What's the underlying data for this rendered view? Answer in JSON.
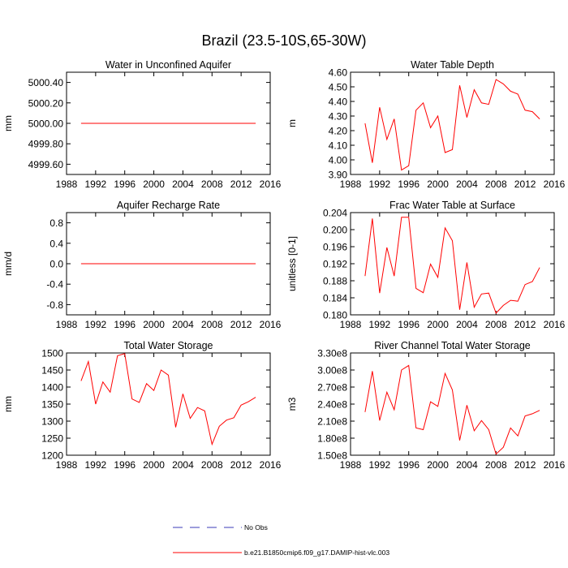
{
  "title": "Brazil (23.5-10S,65-30W)",
  "legend": {
    "entries": [
      {
        "label": "No Obs",
        "color": "#3b3bb8",
        "dash": true
      },
      {
        "label": "b.e21.B1850cmip6.f09_g17.DAMIP-hist-vlc.003",
        "color": "#ff0000",
        "dash": false
      }
    ]
  },
  "chart_data": [
    {
      "type": "line",
      "title": "Water in Unconfined Aquifer",
      "ylabel": "mm",
      "xlim": [
        1988,
        2016
      ],
      "xticks": [
        1988,
        1992,
        1996,
        2000,
        2004,
        2008,
        2012,
        2016
      ],
      "xtick_labels": [
        "1988",
        "1992",
        "1996",
        "2000",
        "2004",
        "2008",
        "2012",
        "2016"
      ],
      "ylim": [
        4999.5,
        5000.5
      ],
      "yticks": [
        4999.6,
        4999.8,
        5000.0,
        5000.2,
        5000.4
      ],
      "ytick_labels": [
        "4999.60",
        "4999.80",
        "5000.00",
        "5000.20",
        "5000.40"
      ],
      "series": [
        {
          "color": "#ff0000",
          "x": [
            1990,
            1991,
            1992,
            1993,
            1994,
            1995,
            1996,
            1997,
            1998,
            1999,
            2000,
            2001,
            2002,
            2003,
            2004,
            2005,
            2006,
            2007,
            2008,
            2009,
            2010,
            2011,
            2012,
            2013,
            2014
          ],
          "y": [
            5000,
            5000,
            5000,
            5000,
            5000,
            5000,
            5000,
            5000,
            5000,
            5000,
            5000,
            5000,
            5000,
            5000,
            5000,
            5000,
            5000,
            5000,
            5000,
            5000,
            5000,
            5000,
            5000,
            5000,
            5000
          ]
        }
      ]
    },
    {
      "type": "line",
      "title": "Water Table Depth",
      "ylabel": "m",
      "xlim": [
        1988,
        2016
      ],
      "xticks": [
        1988,
        1992,
        1996,
        2000,
        2004,
        2008,
        2012,
        2016
      ],
      "xtick_labels": [
        "1988",
        "1992",
        "1996",
        "2000",
        "2004",
        "2008",
        "2012",
        "2016"
      ],
      "ylim": [
        3.9,
        4.6
      ],
      "yticks": [
        3.9,
        4.0,
        4.1,
        4.2,
        4.3,
        4.4,
        4.5,
        4.6
      ],
      "ytick_labels": [
        "3.90",
        "4.00",
        "4.10",
        "4.20",
        "4.30",
        "4.40",
        "4.50",
        "4.60"
      ],
      "series": [
        {
          "color": "#ff0000",
          "x": [
            1990,
            1991,
            1992,
            1993,
            1994,
            1995,
            1996,
            1997,
            1998,
            1999,
            2000,
            2001,
            2002,
            2003,
            2004,
            2005,
            2006,
            2007,
            2008,
            2009,
            2010,
            2011,
            2012,
            2013,
            2014
          ],
          "y": [
            4.25,
            3.98,
            4.36,
            4.14,
            4.28,
            3.93,
            3.96,
            4.34,
            4.39,
            4.22,
            4.3,
            4.05,
            4.07,
            4.51,
            4.29,
            4.48,
            4.39,
            4.38,
            4.55,
            4.52,
            4.47,
            4.45,
            4.34,
            4.33,
            4.28
          ]
        }
      ]
    },
    {
      "type": "line",
      "title": "Aquifer Recharge Rate",
      "ylabel": "mm/d",
      "xlim": [
        1988,
        2016
      ],
      "xticks": [
        1988,
        1992,
        1996,
        2000,
        2004,
        2008,
        2012,
        2016
      ],
      "xtick_labels": [
        "1988",
        "1992",
        "1996",
        "2000",
        "2004",
        "2008",
        "2012",
        "2016"
      ],
      "ylim": [
        -1.0,
        1.0
      ],
      "yticks": [
        -0.8,
        -0.4,
        0.0,
        0.4,
        0.8
      ],
      "ytick_labels": [
        "-0.8",
        "-0.4",
        "0.0",
        "0.4",
        "0.8"
      ],
      "series": [
        {
          "color": "#ff0000",
          "x": [
            1990,
            1991,
            1992,
            1993,
            1994,
            1995,
            1996,
            1997,
            1998,
            1999,
            2000,
            2001,
            2002,
            2003,
            2004,
            2005,
            2006,
            2007,
            2008,
            2009,
            2010,
            2011,
            2012,
            2013,
            2014
          ],
          "y": [
            0,
            0,
            0,
            0,
            0,
            0,
            0,
            0,
            0,
            0,
            0,
            0,
            0,
            0,
            0,
            0,
            0,
            0,
            0,
            0,
            0,
            0,
            0,
            0,
            0
          ]
        }
      ]
    },
    {
      "type": "line",
      "title": "Frac Water Table at Surface",
      "ylabel": "unitless [0-1]",
      "xlim": [
        1988,
        2016
      ],
      "xticks": [
        1988,
        1992,
        1996,
        2000,
        2004,
        2008,
        2012,
        2016
      ],
      "xtick_labels": [
        "1988",
        "1992",
        "1996",
        "2000",
        "2004",
        "2008",
        "2012",
        "2016"
      ],
      "ylim": [
        0.18,
        0.204
      ],
      "yticks": [
        0.18,
        0.184,
        0.188,
        0.192,
        0.196,
        0.2,
        0.204
      ],
      "ytick_labels": [
        "0.180",
        "0.184",
        "0.188",
        "0.192",
        "0.196",
        "0.200",
        "0.204"
      ],
      "series": [
        {
          "color": "#ff0000",
          "x": [
            1990,
            1991,
            1992,
            1993,
            1994,
            1995,
            1996,
            1997,
            1998,
            1999,
            2000,
            2001,
            2002,
            2003,
            2004,
            2005,
            2006,
            2007,
            2008,
            2009,
            2010,
            2011,
            2012,
            2013,
            2014
          ],
          "y": [
            0.1891,
            0.2026,
            0.1851,
            0.1958,
            0.1891,
            0.2029,
            0.2029,
            0.1862,
            0.1852,
            0.1919,
            0.1888,
            0.2004,
            0.1974,
            0.1812,
            0.1923,
            0.1818,
            0.1849,
            0.1851,
            0.1804,
            0.1822,
            0.1834,
            0.1832,
            0.1871,
            0.1878,
            0.1911
          ]
        }
      ]
    },
    {
      "type": "line",
      "title": "Total Water Storage",
      "ylabel": "mm",
      "xlim": [
        1988,
        2016
      ],
      "xticks": [
        1988,
        1992,
        1996,
        2000,
        2004,
        2008,
        2012,
        2016
      ],
      "xtick_labels": [
        "1988",
        "1992",
        "1996",
        "2000",
        "2004",
        "2008",
        "2012",
        "2016"
      ],
      "ylim": [
        1200,
        1500
      ],
      "yticks": [
        1200,
        1250,
        1300,
        1350,
        1400,
        1450,
        1500
      ],
      "ytick_labels": [
        "1200",
        "1250",
        "1300",
        "1350",
        "1400",
        "1450",
        "1500"
      ],
      "series": [
        {
          "color": "#ff0000",
          "x": [
            1990,
            1991,
            1992,
            1993,
            1994,
            1995,
            1996,
            1997,
            1998,
            1999,
            2000,
            2001,
            2002,
            2003,
            2004,
            2005,
            2006,
            2007,
            2008,
            2009,
            2010,
            2011,
            2012,
            2013,
            2014
          ],
          "y": [
            1418,
            1475,
            1350,
            1415,
            1385,
            1492,
            1498,
            1365,
            1355,
            1410,
            1390,
            1450,
            1435,
            1282,
            1380,
            1308,
            1340,
            1330,
            1232,
            1285,
            1303,
            1310,
            1347,
            1357,
            1370
          ]
        }
      ]
    },
    {
      "type": "line",
      "title": "River Channel Total Water Storage",
      "ylabel": "m3",
      "xlim": [
        1988,
        2016
      ],
      "xticks": [
        1988,
        1992,
        1996,
        2000,
        2004,
        2008,
        2012,
        2016
      ],
      "xtick_labels": [
        "1988",
        "1992",
        "1996",
        "2000",
        "2004",
        "2008",
        "2012",
        "2016"
      ],
      "ylim": [
        150000000,
        330000000
      ],
      "yticks": [
        150000000,
        180000000,
        210000000,
        240000000,
        270000000,
        300000000,
        330000000
      ],
      "ytick_labels": [
        "1.50e8",
        "1.80e8",
        "2.10e8",
        "2.40e8",
        "2.70e8",
        "3.00e8",
        "3.30e8"
      ],
      "series": [
        {
          "color": "#ff0000",
          "x": [
            1990,
            1991,
            1992,
            1993,
            1994,
            1995,
            1996,
            1997,
            1998,
            1999,
            2000,
            2001,
            2002,
            2003,
            2004,
            2005,
            2006,
            2007,
            2008,
            2009,
            2010,
            2011,
            2012,
            2013,
            2014
          ],
          "y": [
            226000000,
            298000000,
            211000000,
            261000000,
            230000000,
            300000000,
            308000000,
            198000000,
            195000000,
            244000000,
            236000000,
            294000000,
            265000000,
            176000000,
            238000000,
            193000000,
            211000000,
            195000000,
            152000000,
            164000000,
            198000000,
            184000000,
            219000000,
            223000000,
            229000000
          ]
        }
      ]
    }
  ]
}
